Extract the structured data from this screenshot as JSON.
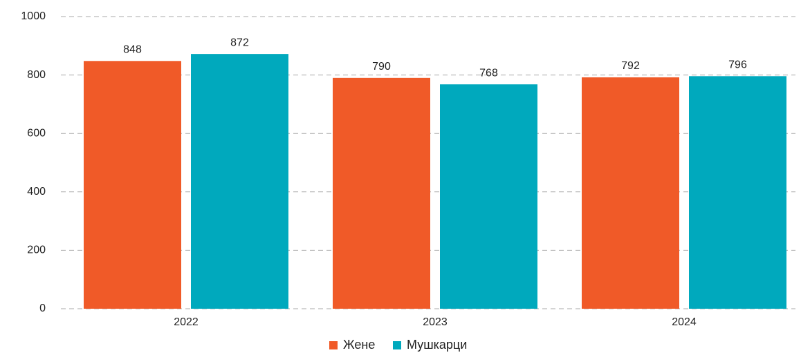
{
  "chart_data": {
    "type": "bar",
    "categories": [
      "2022",
      "2023",
      "2024"
    ],
    "series": [
      {
        "name": "Жене",
        "color": "#f05a28",
        "values": [
          848,
          790,
          792
        ]
      },
      {
        "name": "Мушкарци",
        "color": "#00a9bd",
        "values": [
          872,
          768,
          796
        ]
      }
    ],
    "ylim": [
      0,
      1000
    ],
    "yticks": [
      0,
      200,
      400,
      600,
      800,
      1000
    ],
    "grid": true,
    "legend": "bottom"
  }
}
